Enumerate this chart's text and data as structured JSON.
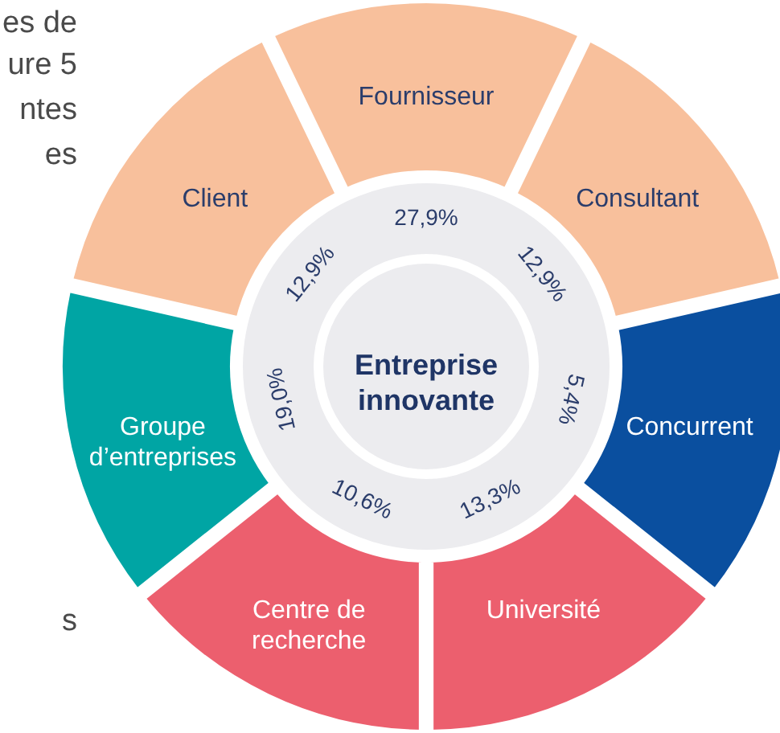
{
  "chart_data": {
    "type": "other",
    "categories": [
      "Fournisseur",
      "Consultant",
      "Concurrent",
      "Université",
      "Centre de recherche",
      "Groupe d’entreprises",
      "Client"
    ],
    "values": [
      27.9,
      12.9,
      5.4,
      13.3,
      10.6,
      19.0,
      12.9
    ],
    "colors": [
      "#f8c09c",
      "#f8c09c",
      "#0a4f9f",
      "#ec5f6e",
      "#ec5f6e",
      "#00a5a4",
      "#f8c09c"
    ],
    "value_labels": [
      "27,9%",
      "12,9%",
      "5,4%",
      "13,3%",
      "10,6%",
      "19,0%",
      "12,9%"
    ],
    "annotations": [
      "Entreprise innovante",
      "es de",
      "ure 5",
      "ntes",
      "es",
      "s"
    ]
  }
}
